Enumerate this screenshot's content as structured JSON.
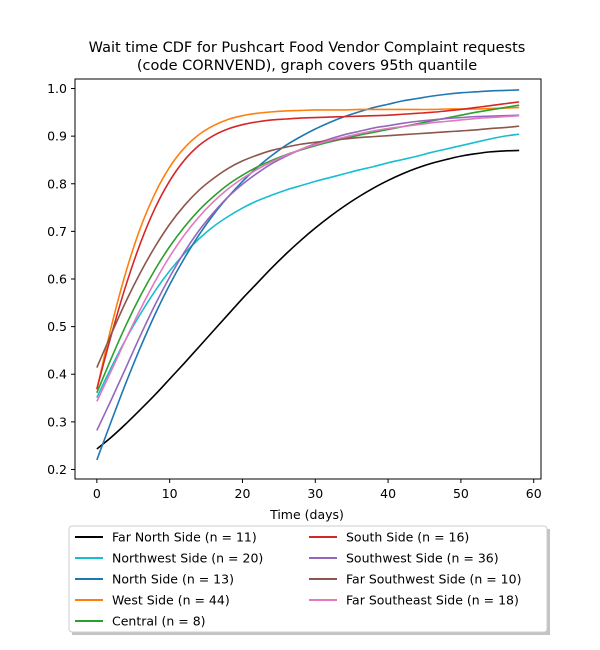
{
  "chart_data": {
    "type": "line",
    "title": "Wait time CDF for Pushcart Food Vendor Complaint  requests",
    "subtitle": "(code CORNVEND), graph covers 95th quantile",
    "xlabel": "Time (days)",
    "ylabel": "",
    "xlim": [
      -3,
      61
    ],
    "ylim": [
      0.18,
      1.02
    ],
    "xticks": [
      0,
      10,
      20,
      30,
      40,
      50,
      60
    ],
    "yticks": [
      0.2,
      0.3,
      0.4,
      0.5,
      0.6,
      0.7,
      0.8,
      0.9,
      1.0
    ],
    "xtick_labels": [
      "0",
      "10",
      "20",
      "30",
      "40",
      "50",
      "60"
    ],
    "ytick_labels": [
      "0.2",
      "0.3",
      "0.4",
      "0.5",
      "0.6",
      "0.7",
      "0.8",
      "0.9",
      "1.0"
    ],
    "grid": false,
    "legend_position": "below plot, two columns",
    "x": [
      0,
      2,
      4,
      6,
      8,
      10,
      12,
      14,
      16,
      18,
      20,
      22,
      24,
      26,
      28,
      30,
      32,
      34,
      36,
      38,
      40,
      42,
      44,
      46,
      48,
      50,
      52,
      54,
      56,
      58
    ],
    "series": [
      {
        "name": "Far North Side (n = 11)",
        "color": "#000000",
        "values": [
          0.243,
          0.268,
          0.296,
          0.326,
          0.357,
          0.39,
          0.423,
          0.457,
          0.491,
          0.525,
          0.559,
          0.591,
          0.623,
          0.653,
          0.681,
          0.707,
          0.731,
          0.753,
          0.773,
          0.791,
          0.807,
          0.821,
          0.833,
          0.843,
          0.851,
          0.858,
          0.863,
          0.867,
          0.869,
          0.87
        ]
      },
      {
        "name": "Northwest Side (n = 20)",
        "color": "#17becf",
        "values": [
          0.351,
          0.415,
          0.474,
          0.527,
          0.575,
          0.617,
          0.653,
          0.684,
          0.71,
          0.731,
          0.749,
          0.764,
          0.776,
          0.787,
          0.796,
          0.805,
          0.813,
          0.821,
          0.829,
          0.836,
          0.844,
          0.851,
          0.858,
          0.866,
          0.873,
          0.88,
          0.887,
          0.894,
          0.9,
          0.904
        ]
      },
      {
        "name": "North Side (n = 13)",
        "color": "#1f77b4",
        "values": [
          0.22,
          0.302,
          0.382,
          0.457,
          0.526,
          0.588,
          0.643,
          0.692,
          0.735,
          0.772,
          0.805,
          0.834,
          0.859,
          0.881,
          0.899,
          0.915,
          0.929,
          0.941,
          0.951,
          0.96,
          0.967,
          0.974,
          0.979,
          0.984,
          0.988,
          0.991,
          0.993,
          0.995,
          0.996,
          0.997
        ]
      },
      {
        "name": "West Side (n = 44)",
        "color": "#ff7f0e",
        "values": [
          0.368,
          0.501,
          0.615,
          0.708,
          0.78,
          0.835,
          0.875,
          0.903,
          0.922,
          0.935,
          0.943,
          0.948,
          0.951,
          0.953,
          0.954,
          0.955,
          0.955,
          0.955,
          0.956,
          0.956,
          0.956,
          0.956,
          0.956,
          0.956,
          0.957,
          0.957,
          0.957,
          0.958,
          0.959,
          0.96
        ]
      },
      {
        "name": "Central (n = 8)",
        "color": "#2ca02c",
        "values": [
          0.361,
          0.434,
          0.503,
          0.565,
          0.62,
          0.668,
          0.709,
          0.744,
          0.773,
          0.798,
          0.818,
          0.835,
          0.849,
          0.861,
          0.871,
          0.88,
          0.888,
          0.895,
          0.902,
          0.908,
          0.914,
          0.92,
          0.926,
          0.932,
          0.938,
          0.944,
          0.95,
          0.955,
          0.96,
          0.965
        ]
      },
      {
        "name": "South Side (n = 16)",
        "color": "#d62728",
        "values": [
          0.369,
          0.483,
          0.587,
          0.676,
          0.749,
          0.806,
          0.849,
          0.88,
          0.901,
          0.915,
          0.924,
          0.93,
          0.934,
          0.936,
          0.938,
          0.939,
          0.94,
          0.941,
          0.942,
          0.943,
          0.944,
          0.946,
          0.948,
          0.95,
          0.953,
          0.956,
          0.96,
          0.964,
          0.968,
          0.972
        ]
      },
      {
        "name": "Southwest Side (n = 36)",
        "color": "#9467bd",
        "values": [
          0.282,
          0.347,
          0.414,
          0.482,
          0.546,
          0.604,
          0.656,
          0.701,
          0.739,
          0.772,
          0.799,
          0.822,
          0.842,
          0.858,
          0.872,
          0.884,
          0.894,
          0.903,
          0.91,
          0.917,
          0.922,
          0.927,
          0.931,
          0.934,
          0.937,
          0.939,
          0.941,
          0.942,
          0.943,
          0.944
        ]
      },
      {
        "name": "Far Southwest Side (n = 10)",
        "color": "#8c564b",
        "values": [
          0.414,
          0.485,
          0.553,
          0.614,
          0.668,
          0.715,
          0.754,
          0.786,
          0.811,
          0.832,
          0.848,
          0.86,
          0.87,
          0.877,
          0.883,
          0.887,
          0.891,
          0.894,
          0.897,
          0.899,
          0.901,
          0.903,
          0.905,
          0.907,
          0.909,
          0.911,
          0.913,
          0.916,
          0.918,
          0.921
        ]
      },
      {
        "name": "Far Southeast Side (n = 18)",
        "color": "#e377c2",
        "values": [
          0.343,
          0.408,
          0.474,
          0.537,
          0.595,
          0.647,
          0.692,
          0.73,
          0.762,
          0.789,
          0.811,
          0.83,
          0.846,
          0.86,
          0.872,
          0.882,
          0.891,
          0.898,
          0.905,
          0.911,
          0.916,
          0.92,
          0.924,
          0.928,
          0.931,
          0.934,
          0.937,
          0.939,
          0.941,
          0.943
        ]
      }
    ],
    "legend_order": [
      0,
      1,
      2,
      3,
      4,
      5,
      6,
      7,
      8
    ]
  }
}
